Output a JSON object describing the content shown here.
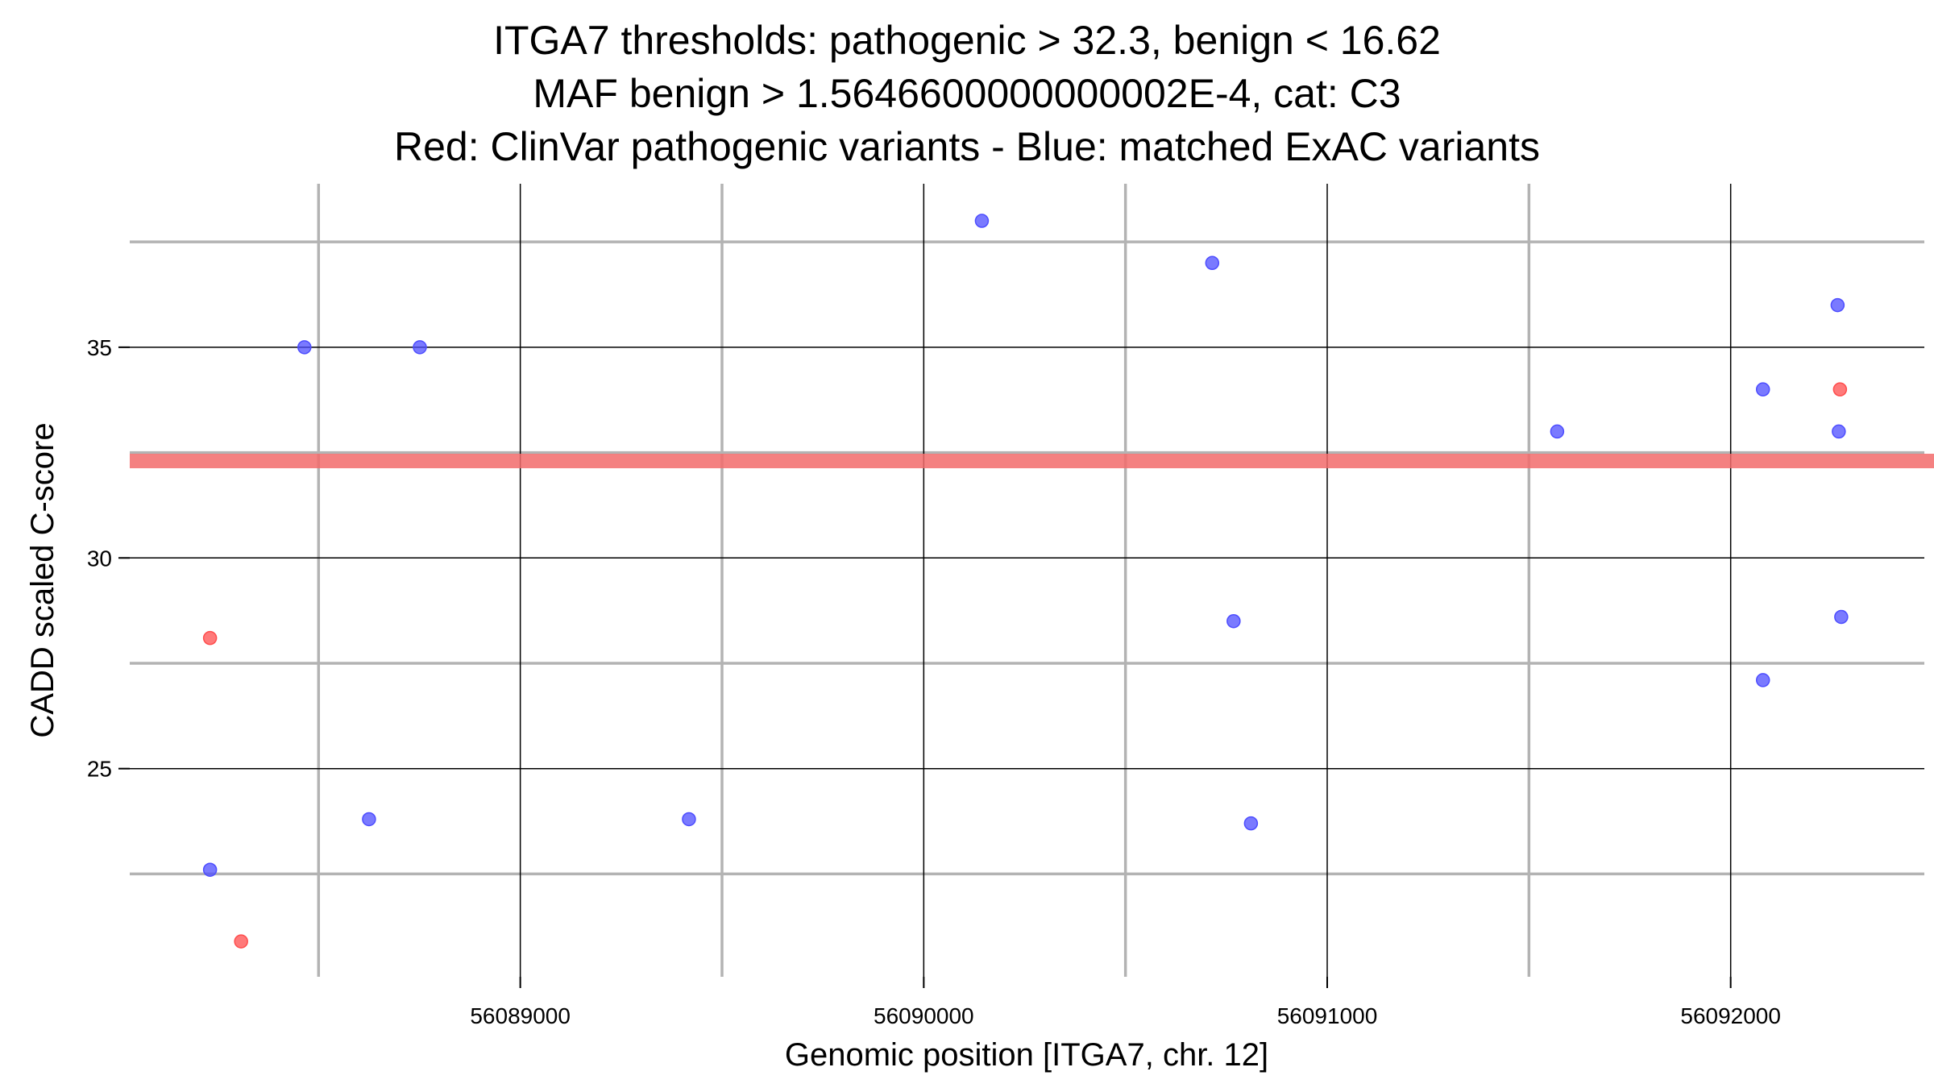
{
  "chart_data": {
    "type": "scatter",
    "title": [
      "ITGA7 thresholds: pathogenic > 32.3, benign < 16.62",
      "MAF benign > 1.5646600000000002E-4, cat: C3",
      "Red: ClinVar pathogenic variants - Blue: matched ExAC variants"
    ],
    "xlabel": "Genomic position [ITGA7, chr. 12]",
    "ylabel": "CADD scaled C-score",
    "xlim": [
      56088032,
      56092480
    ],
    "ylim": [
      20.06,
      38.88
    ],
    "x_ticks": [
      56089000,
      56090000,
      56091000,
      56092000
    ],
    "x_tick_labels": [
      "56089000",
      "56090000",
      "56091000",
      "56092000"
    ],
    "x_minor_grid": [
      56088500,
      56089500,
      56090500,
      56091500
    ],
    "y_ticks": [
      25,
      30,
      35
    ],
    "y_tick_labels": [
      "25",
      "30",
      "35"
    ],
    "y_minor_grid": [
      22.5,
      27.5,
      32.5,
      37.5
    ],
    "threshold_line": {
      "y": 32.3,
      "color": "#f26b6b"
    },
    "grid": true,
    "series": [
      {
        "name": "ClinVar pathogenic variants",
        "color": "#ff4d4d",
        "points": [
          [
            56088231,
            28.1
          ],
          [
            56088308,
            20.9
          ],
          [
            56092271,
            34.0
          ]
        ]
      },
      {
        "name": "matched ExAC variants",
        "color": "#4d4dff",
        "points": [
          [
            56088465,
            35.0
          ],
          [
            56088751,
            35.0
          ],
          [
            56090144,
            38.0
          ],
          [
            56090715,
            37.0
          ],
          [
            56092265,
            36.0
          ],
          [
            56092080,
            34.0
          ],
          [
            56092268,
            33.0
          ],
          [
            56091570,
            33.0
          ],
          [
            56090768,
            28.5
          ],
          [
            56092274,
            28.6
          ],
          [
            56092080,
            27.1
          ],
          [
            56088625,
            23.8
          ],
          [
            56089418,
            23.8
          ],
          [
            56090811,
            23.7
          ],
          [
            56088231,
            22.6
          ]
        ]
      }
    ]
  }
}
